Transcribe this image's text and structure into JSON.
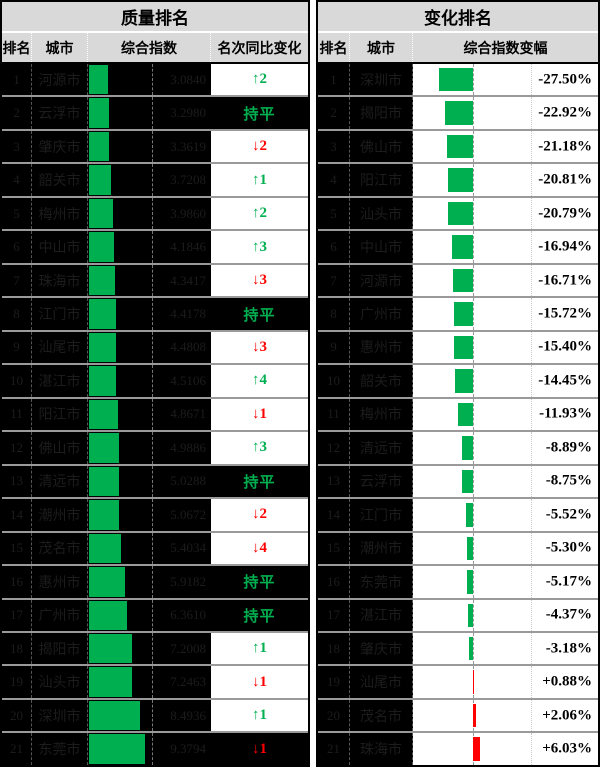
{
  "colors": {
    "header_bg": "#d9d9d9",
    "cell_bg": "#000000",
    "bar_green": "#00b050",
    "bar_red": "#ff0000",
    "up_text": "#00b050",
    "down_text": "#ff0000",
    "grid_line": "#9a9a9a"
  },
  "left_panel": {
    "title": "质量排名",
    "columns": [
      "排名",
      "城市",
      "综合指数",
      "名次同比变化"
    ],
    "rows": [
      {
        "rank": "1",
        "city": "河源市",
        "index": 3.084,
        "index_display": "3.0840",
        "change": {
          "label": "↑2",
          "dir": "up",
          "bg": "white"
        }
      },
      {
        "rank": "2",
        "city": "云浮市",
        "index": 3.298,
        "index_display": "3.2980",
        "change": {
          "label": "持平",
          "dir": "flat",
          "bg": "black"
        }
      },
      {
        "rank": "3",
        "city": "肇庆市",
        "index": 3.3619,
        "index_display": "3.3619",
        "change": {
          "label": "↓2",
          "dir": "down",
          "bg": "white"
        }
      },
      {
        "rank": "4",
        "city": "韶关市",
        "index": 3.7208,
        "index_display": "3.7208",
        "change": {
          "label": "↑1",
          "dir": "up",
          "bg": "white"
        }
      },
      {
        "rank": "5",
        "city": "梅州市",
        "index": 3.986,
        "index_display": "3.9860",
        "change": {
          "label": "↑2",
          "dir": "up",
          "bg": "white"
        }
      },
      {
        "rank": "6",
        "city": "中山市",
        "index": 4.1846,
        "index_display": "4.1846",
        "change": {
          "label": "↑3",
          "dir": "up",
          "bg": "white"
        }
      },
      {
        "rank": "7",
        "city": "珠海市",
        "index": 4.3417,
        "index_display": "4.3417",
        "change": {
          "label": "↓3",
          "dir": "down",
          "bg": "white"
        }
      },
      {
        "rank": "8",
        "city": "江门市",
        "index": 4.4178,
        "index_display": "4.4178",
        "change": {
          "label": "持平",
          "dir": "flat",
          "bg": "black"
        }
      },
      {
        "rank": "9",
        "city": "汕尾市",
        "index": 4.4808,
        "index_display": "4.4808",
        "change": {
          "label": "↓3",
          "dir": "down",
          "bg": "white"
        }
      },
      {
        "rank": "10",
        "city": "湛江市",
        "index": 4.5106,
        "index_display": "4.5106",
        "change": {
          "label": "↑4",
          "dir": "up",
          "bg": "white"
        }
      },
      {
        "rank": "11",
        "city": "阳江市",
        "index": 4.8671,
        "index_display": "4.8671",
        "change": {
          "label": "↓1",
          "dir": "down",
          "bg": "white"
        }
      },
      {
        "rank": "12",
        "city": "佛山市",
        "index": 4.9886,
        "index_display": "4.9886",
        "change": {
          "label": "↑3",
          "dir": "up",
          "bg": "white"
        }
      },
      {
        "rank": "13",
        "city": "清远市",
        "index": 5.0288,
        "index_display": "5.0288",
        "change": {
          "label": "持平",
          "dir": "flat",
          "bg": "black"
        }
      },
      {
        "rank": "14",
        "city": "潮州市",
        "index": 5.0672,
        "index_display": "5.0672",
        "change": {
          "label": "↓2",
          "dir": "down",
          "bg": "white"
        }
      },
      {
        "rank": "15",
        "city": "茂名市",
        "index": 5.4034,
        "index_display": "5.4034",
        "change": {
          "label": "↓4",
          "dir": "down",
          "bg": "white"
        }
      },
      {
        "rank": "16",
        "city": "惠州市",
        "index": 5.9182,
        "index_display": "5.9182",
        "change": {
          "label": "持平",
          "dir": "flat",
          "bg": "black"
        }
      },
      {
        "rank": "17",
        "city": "广州市",
        "index": 6.361,
        "index_display": "6.3610",
        "change": {
          "label": "持平",
          "dir": "flat",
          "bg": "black"
        }
      },
      {
        "rank": "18",
        "city": "揭阳市",
        "index": 7.2008,
        "index_display": "7.2008",
        "change": {
          "label": "↑1",
          "dir": "up",
          "bg": "white"
        }
      },
      {
        "rank": "19",
        "city": "汕头市",
        "index": 7.2463,
        "index_display": "7.2463",
        "change": {
          "label": "↓1",
          "dir": "down",
          "bg": "white"
        }
      },
      {
        "rank": "20",
        "city": "深圳市",
        "index": 8.4936,
        "index_display": "8.4936",
        "change": {
          "label": "↑1",
          "dir": "up",
          "bg": "white"
        }
      },
      {
        "rank": "21",
        "city": "东莞市",
        "index": 9.3794,
        "index_display": "9.3794",
        "change": {
          "label": "↓1",
          "dir": "down",
          "bg": "black"
        }
      }
    ]
  },
  "right_panel": {
    "title": "变化排名",
    "columns": [
      "排名",
      "城市",
      "综合指数变幅"
    ],
    "rows": [
      {
        "rank": "1",
        "city": "深圳市",
        "pct": -27.5,
        "pct_display": "-27.50%"
      },
      {
        "rank": "2",
        "city": "揭阳市",
        "pct": -22.92,
        "pct_display": "-22.92%"
      },
      {
        "rank": "3",
        "city": "佛山市",
        "pct": -21.18,
        "pct_display": "-21.18%"
      },
      {
        "rank": "4",
        "city": "阳江市",
        "pct": -20.81,
        "pct_display": "-20.81%"
      },
      {
        "rank": "5",
        "city": "汕头市",
        "pct": -20.79,
        "pct_display": "-20.79%"
      },
      {
        "rank": "6",
        "city": "中山市",
        "pct": -16.94,
        "pct_display": "-16.94%"
      },
      {
        "rank": "7",
        "city": "河源市",
        "pct": -16.71,
        "pct_display": "-16.71%"
      },
      {
        "rank": "8",
        "city": "广州市",
        "pct": -15.72,
        "pct_display": "-15.72%"
      },
      {
        "rank": "9",
        "city": "惠州市",
        "pct": -15.4,
        "pct_display": "-15.40%"
      },
      {
        "rank": "10",
        "city": "韶关市",
        "pct": -14.45,
        "pct_display": "-14.45%"
      },
      {
        "rank": "11",
        "city": "梅州市",
        "pct": -11.93,
        "pct_display": "-11.93%"
      },
      {
        "rank": "12",
        "city": "清远市",
        "pct": -8.89,
        "pct_display": "-8.89%"
      },
      {
        "rank": "13",
        "city": "云浮市",
        "pct": -8.75,
        "pct_display": "-8.75%"
      },
      {
        "rank": "14",
        "city": "江门市",
        "pct": -5.52,
        "pct_display": "-5.52%"
      },
      {
        "rank": "15",
        "city": "潮州市",
        "pct": -5.3,
        "pct_display": "-5.30%"
      },
      {
        "rank": "16",
        "city": "东莞市",
        "pct": -5.17,
        "pct_display": "-5.17%"
      },
      {
        "rank": "17",
        "city": "湛江市",
        "pct": -4.37,
        "pct_display": "-4.37%"
      },
      {
        "rank": "18",
        "city": "肇庆市",
        "pct": -3.18,
        "pct_display": "-3.18%"
      },
      {
        "rank": "19",
        "city": "汕尾市",
        "pct": 0.88,
        "pct_display": "+0.88%"
      },
      {
        "rank": "20",
        "city": "茂名市",
        "pct": 2.06,
        "pct_display": "+2.06%"
      },
      {
        "rank": "21",
        "city": "珠海市",
        "pct": 6.03,
        "pct_display": "+6.03%"
      }
    ]
  },
  "chart_data": [
    {
      "type": "bar",
      "orientation": "horizontal",
      "title": "质量排名 - 综合指数",
      "categories": [
        "河源市",
        "云浮市",
        "肇庆市",
        "韶关市",
        "梅州市",
        "中山市",
        "珠海市",
        "江门市",
        "汕尾市",
        "湛江市",
        "阳江市",
        "佛山市",
        "清远市",
        "潮州市",
        "茂名市",
        "惠州市",
        "广州市",
        "揭阳市",
        "汕头市",
        "深圳市",
        "东莞市"
      ],
      "values": [
        3.084,
        3.298,
        3.3619,
        3.7208,
        3.986,
        4.1846,
        4.3417,
        4.4178,
        4.4808,
        4.5106,
        4.8671,
        4.9886,
        5.0288,
        5.0672,
        5.4034,
        5.9182,
        6.361,
        7.2008,
        7.2463,
        8.4936,
        9.3794
      ],
      "bar_color": "#00b050",
      "annotations": [
        "↑2",
        "持平",
        "↓2",
        "↑1",
        "↑2",
        "↑3",
        "↓3",
        "持平",
        "↓3",
        "↑4",
        "↓1",
        "↑3",
        "持平",
        "↓2",
        "↓4",
        "持平",
        "持平",
        "↑1",
        "↓1",
        "↑1",
        "↓1"
      ]
    },
    {
      "type": "bar",
      "orientation": "horizontal",
      "title": "变化排名 - 综合指数变幅(%)",
      "categories": [
        "深圳市",
        "揭阳市",
        "佛山市",
        "阳江市",
        "汕头市",
        "中山市",
        "河源市",
        "广州市",
        "惠州市",
        "韶关市",
        "梅州市",
        "清远市",
        "云浮市",
        "江门市",
        "潮州市",
        "东莞市",
        "湛江市",
        "肇庆市",
        "汕尾市",
        "茂名市",
        "珠海市"
      ],
      "values": [
        -27.5,
        -22.92,
        -21.18,
        -20.81,
        -20.79,
        -16.94,
        -16.71,
        -15.72,
        -15.4,
        -14.45,
        -11.93,
        -8.89,
        -8.75,
        -5.52,
        -5.3,
        -5.17,
        -4.37,
        -3.18,
        0.88,
        2.06,
        6.03
      ],
      "negative_bar_color": "#00b050",
      "positive_bar_color": "#ff0000",
      "axis_zero_line": "dashed"
    }
  ]
}
